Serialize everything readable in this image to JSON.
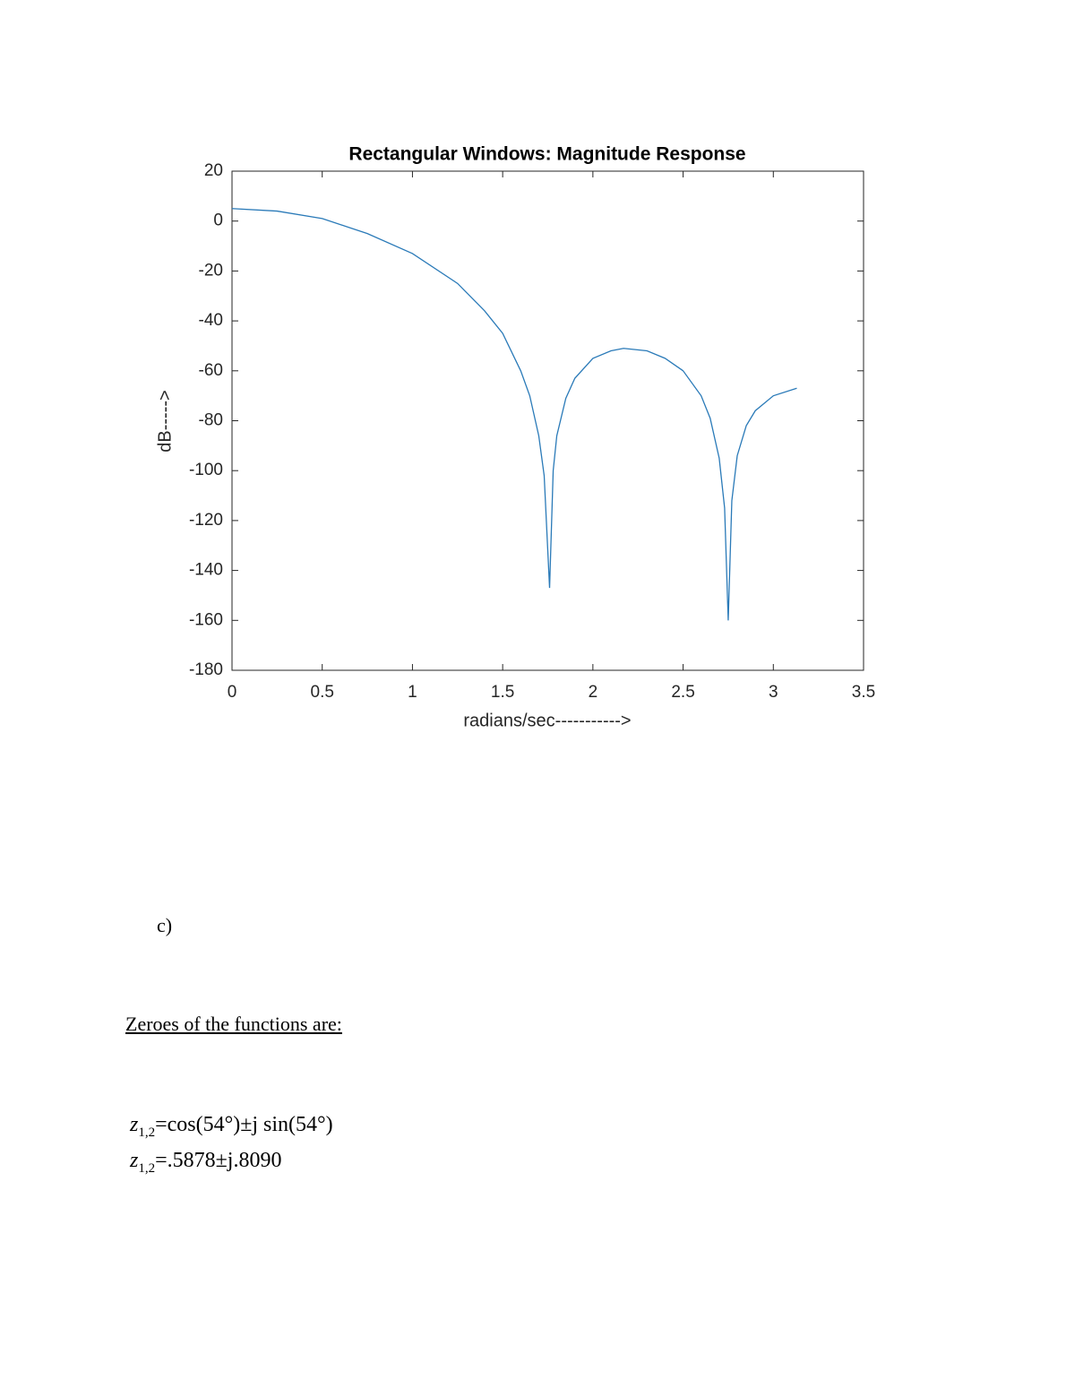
{
  "chart_data": {
    "type": "line",
    "title": "Rectangular Windows: Magnitude Response",
    "xlabel": "radians/sec----------->",
    "ylabel": "dB----->",
    "x": [
      0,
      0.25,
      0.5,
      0.75,
      1.0,
      1.25,
      1.4,
      1.5,
      1.6,
      1.65,
      1.7,
      1.73,
      1.76,
      1.78,
      1.8,
      1.85,
      1.9,
      2.0,
      2.1,
      2.17,
      2.3,
      2.4,
      2.5,
      2.6,
      2.65,
      2.7,
      2.73,
      2.75,
      2.77,
      2.8,
      2.85,
      2.9,
      3.0,
      3.13
    ],
    "series": [
      {
        "name": "magnitude",
        "color": "#2a7ab8",
        "values": [
          5,
          4,
          1,
          -5,
          -13,
          -25,
          -36,
          -45,
          -60,
          -70,
          -86,
          -102,
          -147,
          -100,
          -86,
          -71,
          -63,
          -55,
          -52,
          -51,
          -52,
          -55,
          -60,
          -70,
          -79,
          -95,
          -115,
          -160,
          -112,
          -94,
          -82,
          -76,
          -70,
          -67
        ]
      }
    ],
    "xlim": [
      0,
      3.5
    ],
    "xticks": [
      0,
      0.5,
      1,
      1.5,
      2,
      2.5,
      3,
      3.5
    ],
    "ylim": [
      -180,
      20
    ],
    "yticks": [
      -180,
      -160,
      -140,
      -120,
      -100,
      -80,
      -60,
      -40,
      -20,
      0,
      20
    ],
    "grid": false
  },
  "section_label": "c)",
  "heading": "Zeroes of the functions are:",
  "equations": [
    {
      "var": "z",
      "subscript": "1,2",
      "rhs": "=cos(54°)±j sin(54°)"
    },
    {
      "var": "z",
      "subscript": "1,2",
      "rhs": "=.5878±j.8090"
    }
  ]
}
